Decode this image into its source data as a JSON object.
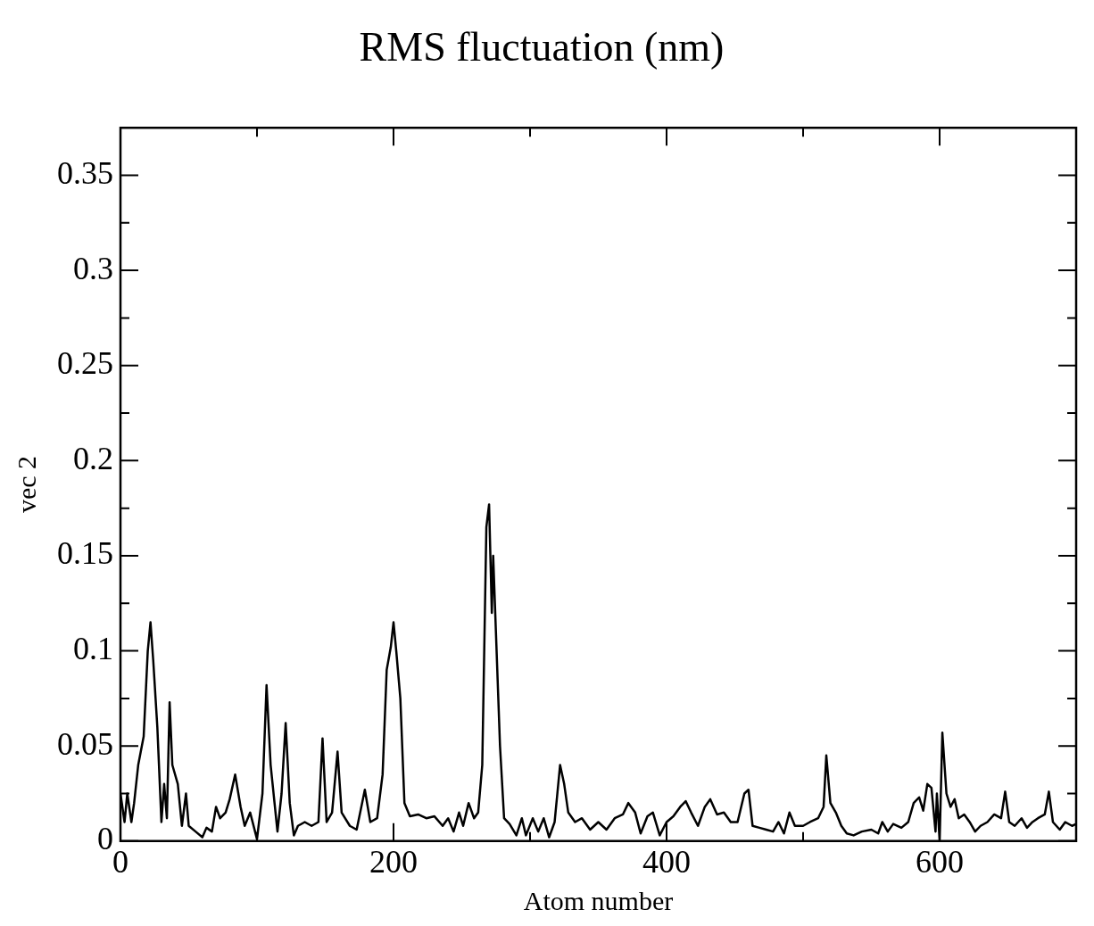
{
  "chart_data": {
    "type": "line",
    "title": "RMS fluctuation (nm)",
    "xlabel": "Atom number",
    "ylabel": "vec 2",
    "xlim": [
      0,
      700
    ],
    "ylim": [
      0,
      0.375
    ],
    "xticks": [
      0,
      {
        "value": 100,
        "label": null
      },
      200,
      {
        "value": 300,
        "label": null
      },
      400,
      {
        "value": 500,
        "label": null
      },
      600,
      {
        "value": 700,
        "label": null
      }
    ],
    "yticks": [
      0,
      {
        "value": 0.025,
        "label": null
      },
      0.05,
      {
        "value": 0.075,
        "label": null
      },
      0.1,
      {
        "value": 0.125,
        "label": null
      },
      0.15,
      {
        "value": 0.175,
        "label": null
      },
      0.2,
      {
        "value": 0.225,
        "label": null
      },
      0.25,
      {
        "value": 0.275,
        "label": null
      },
      0.3,
      {
        "value": 0.325,
        "label": null
      },
      0.35
    ],
    "grid": false,
    "legend": false,
    "marker": "none",
    "line_style": "solid",
    "series": [
      {
        "color": "#000000",
        "x": [
          0,
          3,
          5,
          8,
          10,
          13,
          17,
          20,
          22,
          24,
          27,
          30,
          32,
          34,
          36,
          38,
          42,
          45,
          48,
          50,
          55,
          60,
          63,
          67,
          70,
          73,
          77,
          80,
          84,
          88,
          91,
          95,
          100,
          104,
          107,
          110,
          115,
          118,
          121,
          124,
          127,
          130,
          135,
          140,
          145,
          148,
          151,
          155,
          159,
          162,
          168,
          173,
          179,
          183,
          188,
          192,
          195,
          198,
          200,
          202,
          205,
          208,
          212,
          218,
          224,
          230,
          236,
          240,
          244,
          248,
          251,
          255,
          259,
          262,
          265,
          268,
          270,
          272,
          273,
          275,
          278,
          281,
          285,
          290,
          294,
          297,
          302,
          306,
          310,
          314,
          318,
          322,
          325,
          328,
          333,
          338,
          344,
          350,
          356,
          362,
          368,
          372,
          377,
          381,
          386,
          390,
          395,
          400,
          405,
          410,
          414,
          418,
          423,
          428,
          432,
          437,
          442,
          447,
          452,
          457,
          460,
          463,
          468,
          473,
          478,
          482,
          486,
          490,
          494,
          500,
          505,
          511,
          515,
          517,
          520,
          524,
          528,
          532,
          537,
          543,
          550,
          555,
          558,
          562,
          566,
          572,
          577,
          581,
          585,
          588,
          591,
          594,
          597,
          598,
          600,
          602,
          605,
          608,
          611,
          614,
          618,
          622,
          626,
          630,
          635,
          640,
          645,
          648,
          651,
          655,
          660,
          664,
          668,
          672,
          677,
          680,
          683,
          688,
          692,
          697,
          700
        ],
        "values": [
          0.025,
          0.01,
          0.025,
          0.01,
          0.02,
          0.04,
          0.055,
          0.1,
          0.115,
          0.095,
          0.06,
          0.01,
          0.03,
          0.012,
          0.073,
          0.04,
          0.03,
          0.008,
          0.025,
          0.008,
          0.005,
          0.002,
          0.007,
          0.005,
          0.018,
          0.012,
          0.015,
          0.022,
          0.035,
          0.018,
          0.008,
          0.015,
          0.001,
          0.025,
          0.082,
          0.04,
          0.005,
          0.025,
          0.062,
          0.02,
          0.003,
          0.008,
          0.01,
          0.008,
          0.01,
          0.054,
          0.01,
          0.015,
          0.047,
          0.015,
          0.008,
          0.006,
          0.027,
          0.01,
          0.012,
          0.035,
          0.09,
          0.102,
          0.115,
          0.1,
          0.075,
          0.02,
          0.013,
          0.014,
          0.012,
          0.013,
          0.008,
          0.012,
          0.005,
          0.015,
          0.008,
          0.02,
          0.012,
          0.015,
          0.04,
          0.165,
          0.177,
          0.12,
          0.15,
          0.11,
          0.05,
          0.012,
          0.009,
          0.003,
          0.012,
          0.003,
          0.012,
          0.005,
          0.012,
          0.002,
          0.01,
          0.04,
          0.03,
          0.015,
          0.01,
          0.012,
          0.006,
          0.01,
          0.006,
          0.012,
          0.014,
          0.02,
          0.015,
          0.004,
          0.013,
          0.015,
          0.003,
          0.01,
          0.013,
          0.018,
          0.021,
          0.015,
          0.008,
          0.018,
          0.022,
          0.014,
          0.015,
          0.01,
          0.01,
          0.025,
          0.027,
          0.008,
          0.007,
          0.006,
          0.005,
          0.01,
          0.004,
          0.015,
          0.008,
          0.008,
          0.01,
          0.012,
          0.018,
          0.045,
          0.02,
          0.015,
          0.008,
          0.004,
          0.003,
          0.005,
          0.006,
          0.004,
          0.01,
          0.005,
          0.009,
          0.007,
          0.01,
          0.02,
          0.023,
          0.016,
          0.03,
          0.028,
          0.005,
          0.025,
          0.0,
          0.057,
          0.025,
          0.018,
          0.022,
          0.012,
          0.014,
          0.01,
          0.005,
          0.008,
          0.01,
          0.014,
          0.012,
          0.026,
          0.01,
          0.008,
          0.012,
          0.007,
          0.01,
          0.012,
          0.014,
          0.026,
          0.01,
          0.006,
          0.01,
          0.008,
          0.009
        ]
      }
    ]
  }
}
